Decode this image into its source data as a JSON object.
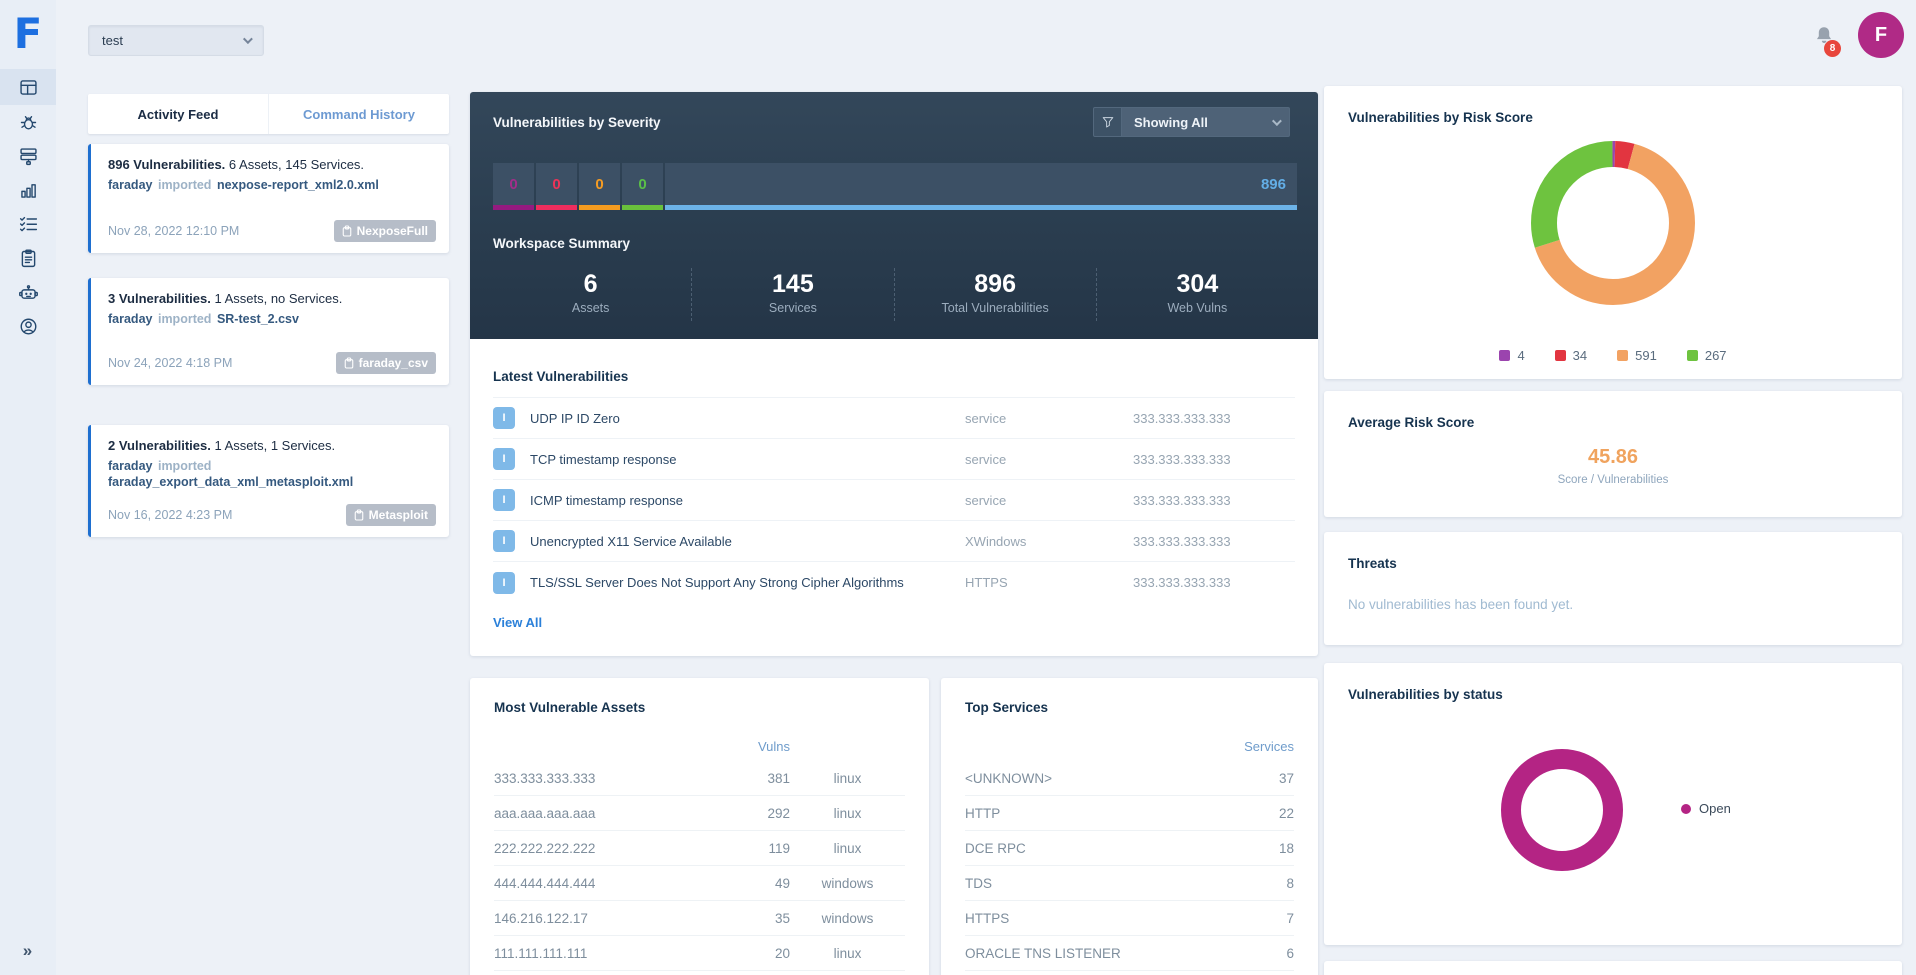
{
  "logo": {
    "letter": "F"
  },
  "sidebar": {
    "items": [
      {
        "icon": "dashboard-icon",
        "active": true
      },
      {
        "icon": "vulnerabilities-bug-icon",
        "active": false
      },
      {
        "icon": "assets-icon",
        "active": false
      },
      {
        "icon": "analytics-icon",
        "active": false
      },
      {
        "icon": "planner-icon",
        "active": false
      },
      {
        "icon": "reports-icon",
        "active": false
      },
      {
        "icon": "agents-icon",
        "active": false
      },
      {
        "icon": "users-icon",
        "active": false
      }
    ],
    "collapse_icon": "»"
  },
  "topbar": {
    "workspace_selector": {
      "value": "test"
    },
    "notifications": {
      "count": "8"
    },
    "avatar": {
      "initial": "F"
    }
  },
  "tabs": {
    "activity_feed": "Activity Feed",
    "command_history": "Command History"
  },
  "activity_feed": {
    "cards": [
      {
        "title_bold": "896 Vulnerabilities.",
        "title_rest": " 6 Assets, 145 Services.",
        "actor": "faraday",
        "action": "imported",
        "target": "nexpose-report_xml2.0.xml",
        "date": "Nov 28, 2022 12:10 PM",
        "tool_badge": "NexposeFull"
      },
      {
        "title_bold": "3 Vulnerabilities.",
        "title_rest": " 1 Assets, no Services.",
        "actor": "faraday",
        "action": "imported",
        "target": "SR-test_2.csv",
        "date": "Nov 24, 2022 4:18 PM",
        "tool_badge": "faraday_csv"
      },
      {
        "title_bold": "2 Vulnerabilities.",
        "title_rest": " 1 Assets, 1 Services.",
        "actor": "faraday",
        "action": "imported",
        "target": "faraday_export_data_xml_metasploit.xml",
        "date": "Nov 16, 2022 4:23 PM",
        "tool_badge": "Metasploit"
      }
    ]
  },
  "severity_panel": {
    "title": "Vulnerabilities by Severity",
    "filter_dropdown": "Showing All",
    "cells": [
      {
        "count": "0",
        "severity": "critical",
        "color": "#a22d8a",
        "bar_color": "#951a80"
      },
      {
        "count": "0",
        "severity": "high",
        "color": "#ec3358",
        "bar_color": "#ee2d5e"
      },
      {
        "count": "0",
        "severity": "medium",
        "color": "#f59c23",
        "bar_color": "#f49b1f"
      },
      {
        "count": "0",
        "severity": "low",
        "color": "#5abf48",
        "bar_color": "#69c13c"
      },
      {
        "count": "896",
        "severity": "informational",
        "color": "#63aee6",
        "bar_color": "#6cb3e8"
      }
    ]
  },
  "workspace_summary": {
    "title": "Workspace Summary",
    "stats": [
      {
        "value": "6",
        "label": "Assets"
      },
      {
        "value": "145",
        "label": "Services"
      },
      {
        "value": "896",
        "label": "Total Vulnerabilities"
      },
      {
        "value": "304",
        "label": "Web Vulns"
      }
    ]
  },
  "latest_vulnerabilities": {
    "title": "Latest Vulnerabilities",
    "view_all": "View All",
    "rows": [
      {
        "severity_badge": "I",
        "name": "UDP IP ID Zero",
        "service": "service",
        "target": "333.333.333.333"
      },
      {
        "severity_badge": "I",
        "name": "TCP timestamp response",
        "service": "service",
        "target": "333.333.333.333"
      },
      {
        "severity_badge": "I",
        "name": "ICMP timestamp response",
        "service": "service",
        "target": "333.333.333.333"
      },
      {
        "severity_badge": "I",
        "name": "Unencrypted X11 Service Available",
        "service": "XWindows",
        "target": "333.333.333.333"
      },
      {
        "severity_badge": "I",
        "name": "TLS/SSL Server Does Not Support Any Strong Cipher Algorithms",
        "service": "HTTPS",
        "target": "333.333.333.333"
      }
    ]
  },
  "most_vulnerable_assets": {
    "title": "Most Vulnerable Assets",
    "column_header": "Vulns",
    "rows": [
      {
        "asset": "333.333.333.333",
        "vulns": "381",
        "os": "linux"
      },
      {
        "asset": "aaa.aaa.aaa.aaa",
        "vulns": "292",
        "os": "linux"
      },
      {
        "asset": "222.222.222.222",
        "vulns": "119",
        "os": "linux"
      },
      {
        "asset": "444.444.444.444",
        "vulns": "49",
        "os": "windows"
      },
      {
        "asset": "146.216.122.17",
        "vulns": "35",
        "os": "windows"
      },
      {
        "asset": "111.111.111.111",
        "vulns": "20",
        "os": "linux"
      }
    ]
  },
  "top_services": {
    "title": "Top Services",
    "column_header": "Services",
    "rows": [
      {
        "service": "<UNKNOWN>",
        "count": "37"
      },
      {
        "service": "HTTP",
        "count": "22"
      },
      {
        "service": "DCE RPC",
        "count": "18"
      },
      {
        "service": "TDS",
        "count": "8"
      },
      {
        "service": "HTTPS",
        "count": "7"
      },
      {
        "service": "ORACLE TNS LISTENER",
        "count": "6"
      }
    ]
  },
  "risk_score_panel": {
    "title": "Vulnerabilities by Risk Score"
  },
  "average_risk_score": {
    "title": "Average Risk Score",
    "value": "45.86",
    "subtitle": "Score / Vulnerabilities",
    "value_color": "#f0a35e"
  },
  "threats_panel": {
    "title": "Threats",
    "empty_message": "No vulnerabilities has been found yet."
  },
  "status_panel": {
    "title": "Vulnerabilities by status"
  },
  "chart_data": [
    {
      "type": "pie",
      "donut": true,
      "title": "Vulnerabilities by Risk Score",
      "legend_position": "bottom",
      "labels": [
        "4",
        "34",
        "591",
        "267"
      ],
      "values": [
        4,
        34,
        591,
        267
      ],
      "colors": [
        "#9b44ae",
        "#e23540",
        "#f2a262",
        "#6ec33f"
      ]
    },
    {
      "type": "pie",
      "donut": true,
      "title": "Vulnerabilities by status",
      "legend_position": "right",
      "labels": [
        "Open"
      ],
      "values": [
        896
      ],
      "colors": [
        "#b42484"
      ]
    }
  ]
}
